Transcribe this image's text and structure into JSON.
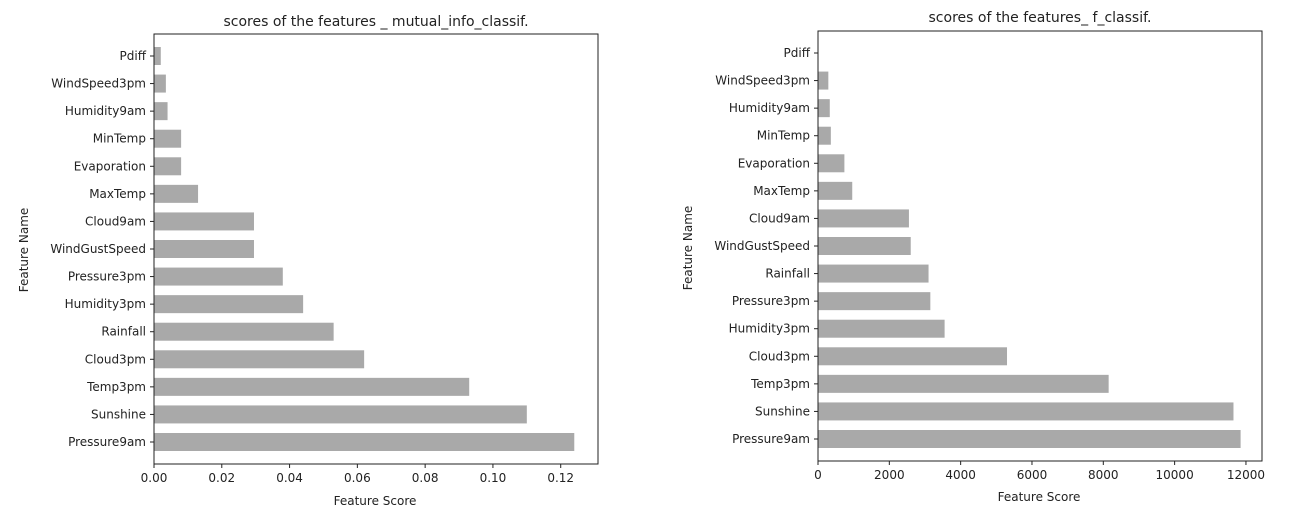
{
  "chart_data": [
    {
      "type": "bar",
      "orientation": "horizontal",
      "title": "scores of the features _ mutual_info_classif.",
      "xlabel": "Feature Score",
      "ylabel": "Feature Name",
      "categories": [
        "Pdiff",
        "WindSpeed3pm",
        "Humidity9am",
        "MinTemp",
        "Evaporation",
        "MaxTemp",
        "Cloud9am",
        "WindGustSpeed",
        "Pressure3pm",
        "Humidity3pm",
        "Rainfall",
        "Cloud3pm",
        "Temp3pm",
        "Sunshine",
        "Pressure9am"
      ],
      "values": [
        0.002,
        0.0035,
        0.004,
        0.008,
        0.008,
        0.013,
        0.0295,
        0.0295,
        0.038,
        0.044,
        0.053,
        0.062,
        0.093,
        0.11,
        0.124
      ],
      "xlim": [
        0,
        0.131
      ],
      "xticks": [
        0.0,
        0.02,
        0.04,
        0.06,
        0.08,
        0.1,
        0.12
      ],
      "xtick_labels": [
        "0.00",
        "0.02",
        "0.04",
        "0.06",
        "0.08",
        "0.10",
        "0.12"
      ],
      "grid": false,
      "bar_color": "#a9a9a9"
    },
    {
      "type": "bar",
      "orientation": "horizontal",
      "title": "scores of the features_ f_classif.",
      "xlabel": "Feature Score",
      "ylabel": "Feature Name",
      "categories": [
        "Pdiff",
        "WindSpeed3pm",
        "Humidity9am",
        "MinTemp",
        "Evaporation",
        "MaxTemp",
        "Cloud9am",
        "WindGustSpeed",
        "Rainfall",
        "Pressure3pm",
        "Humidity3pm",
        "Cloud3pm",
        "Temp3pm",
        "Sunshine",
        "Pressure9am"
      ],
      "values": [
        0,
        290,
        330,
        360,
        740,
        960,
        2550,
        2600,
        3100,
        3150,
        3550,
        5300,
        8150,
        11650,
        11850
      ],
      "xlim": [
        0,
        12450
      ],
      "xticks": [
        0,
        2000,
        4000,
        6000,
        8000,
        10000,
        12000
      ],
      "xtick_labels": [
        "0",
        "2000",
        "4000",
        "6000",
        "8000",
        "10000",
        "12000"
      ],
      "grid": false,
      "bar_color": "#a9a9a9"
    }
  ]
}
